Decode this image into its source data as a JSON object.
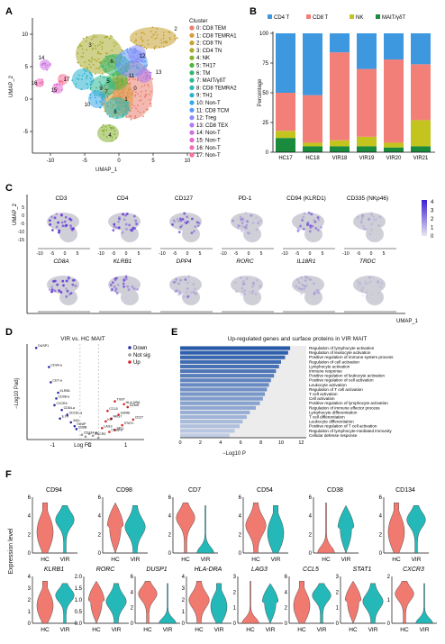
{
  "panels": [
    "A",
    "B",
    "C",
    "D",
    "E",
    "F"
  ],
  "panel_a": {
    "xlabel": "UMAP_1",
    "ylabel": "UMAP_2",
    "xticks": [
      "-10",
      "-5",
      "0",
      "5",
      "10"
    ],
    "yticks": [
      "10",
      "5",
      "0",
      "-5"
    ],
    "legend_title": "Cluster",
    "clusters": [
      {
        "label": "0: CD8 TEM",
        "color": "#e97f6f"
      },
      {
        "label": "1: CD8 TEMRA1",
        "color": "#d89b3d"
      },
      {
        "label": "2: CD8 TN",
        "color": "#c7a133"
      },
      {
        "label": "3: CD4 TN",
        "color": "#a9ab30"
      },
      {
        "label": "4: NK",
        "color": "#85b12f"
      },
      {
        "label": "5: TH17",
        "color": "#4fb63a"
      },
      {
        "label": "6: TM",
        "color": "#33b76c"
      },
      {
        "label": "7: MAIT/γδT",
        "color": "#2fb895"
      },
      {
        "label": "8: CD8 TEMRA2",
        "color": "#2db7b5"
      },
      {
        "label": "9: TH1",
        "color": "#2ab3cf"
      },
      {
        "label": "10: Non-T",
        "color": "#36a9e6"
      },
      {
        "label": "11: CD8 TCM",
        "color": "#5b9bf5"
      },
      {
        "label": "12: Treg",
        "color": "#8b8cf7"
      },
      {
        "label": "13: CD8 TEX",
        "color": "#b27cf2"
      },
      {
        "label": "14: Non-T",
        "color": "#cf70e3"
      },
      {
        "label": "15: Non-T",
        "color": "#e46ad0"
      },
      {
        "label": "16: Non-T",
        "color": "#ef6cb5"
      },
      {
        "label": "17: Non-T",
        "color": "#f37597"
      }
    ],
    "cluster_numbers": [
      "0",
      "1",
      "2",
      "3",
      "4",
      "5",
      "6",
      "7",
      "8",
      "9",
      "10",
      "11",
      "12",
      "13",
      "14",
      "15",
      "16",
      "17"
    ]
  },
  "chart_data": [
    {
      "type": "bar",
      "stacked": true,
      "panel": "B",
      "ylabel": "Percentage",
      "ylim": [
        0,
        100
      ],
      "yticks": [
        "0",
        "25",
        "50",
        "75",
        "100"
      ],
      "categories": [
        "HC17",
        "HC18",
        "VIR18",
        "VIR19",
        "VIR20",
        "VIR21"
      ],
      "legend": "top",
      "series": [
        {
          "name": "MAIT/γδT",
          "color": "#1a8a3c",
          "values": [
            12,
            5,
            5,
            5,
            4,
            5
          ]
        },
        {
          "name": "NK",
          "color": "#c4c41e",
          "values": [
            6,
            3,
            5,
            8,
            4,
            22
          ]
        },
        {
          "name": "CD8 T",
          "color": "#f37f79",
          "values": [
            32,
            40,
            74,
            57,
            70,
            47
          ]
        },
        {
          "name": "CD4 T",
          "color": "#3e98e0",
          "values": [
            50,
            52,
            16,
            30,
            22,
            26
          ]
        }
      ]
    },
    {
      "type": "scatter",
      "panel": "D",
      "title": "VIR vs. HC MAIT",
      "xlabel": "Log FC",
      "ylabel": "−Log10 Padj",
      "xticks": [
        "-1",
        "0",
        "1"
      ],
      "legend": [
        "Down",
        "Not sig",
        "Up"
      ],
      "legend_colors": [
        "#2a2fa8",
        "#999999",
        "#d62728"
      ],
      "labeled_genes": [
        "DUSP1",
        "CD94-a",
        "CD7-a",
        "KLRB1",
        "CD98-a",
        "CXCR4",
        "CD54-a",
        "CD161-a",
        "IL7R",
        "JUN",
        "TXNIP",
        "CD8B",
        "TIGIT",
        "HLA-DRA",
        "GZMH",
        "CCL5",
        "GZMB",
        "NKG7",
        "KIP",
        "STAT1",
        "LAG3",
        "SELL",
        "CD27",
        "CD38-a",
        "CD134-a",
        "CXCR3"
      ],
      "points": [
        {
          "x": -1.45,
          "y": 9.6,
          "g": "down"
        },
        {
          "x": -1.1,
          "y": 7.6,
          "g": "down"
        },
        {
          "x": -1.05,
          "y": 6.0,
          "g": "down"
        },
        {
          "x": -0.85,
          "y": 4.9,
          "g": "down"
        },
        {
          "x": -0.9,
          "y": 4.3,
          "g": "down"
        },
        {
          "x": -0.95,
          "y": 3.6,
          "g": "down"
        },
        {
          "x": -0.75,
          "y": 3.1,
          "g": "down"
        },
        {
          "x": -0.6,
          "y": 2.6,
          "g": "down"
        },
        {
          "x": -0.8,
          "y": 2.2,
          "g": "down"
        },
        {
          "x": -0.5,
          "y": 1.8,
          "g": "down"
        },
        {
          "x": -0.4,
          "y": 1.4,
          "g": "down"
        },
        {
          "x": -0.35,
          "y": 1.1,
          "g": "down"
        },
        {
          "x": 0.7,
          "y": 4.0,
          "g": "up"
        },
        {
          "x": 0.95,
          "y": 3.7,
          "g": "up"
        },
        {
          "x": 1.05,
          "y": 3.4,
          "g": "up"
        },
        {
          "x": 0.5,
          "y": 3.0,
          "g": "up"
        },
        {
          "x": 0.8,
          "y": 2.6,
          "g": "up"
        },
        {
          "x": 0.6,
          "y": 2.2,
          "g": "up"
        },
        {
          "x": 0.45,
          "y": 1.9,
          "g": "up"
        },
        {
          "x": 0.9,
          "y": 1.5,
          "g": "up"
        },
        {
          "x": 0.35,
          "y": 1.2,
          "g": "up"
        },
        {
          "x": 0.7,
          "y": 1.0,
          "g": "up"
        },
        {
          "x": 1.2,
          "y": 2.1,
          "g": "up"
        },
        {
          "x": 0.55,
          "y": 0.8,
          "g": "up"
        },
        {
          "x": -0.2,
          "y": 0.5,
          "g": "ns"
        },
        {
          "x": 0.1,
          "y": 0.4,
          "g": "ns"
        },
        {
          "x": 0.2,
          "y": 0.7,
          "g": "ns"
        },
        {
          "x": -0.1,
          "y": 0.3,
          "g": "ns"
        },
        {
          "x": 0.0,
          "y": 0.6,
          "g": "ns"
        },
        {
          "x": 0.25,
          "y": 0.2,
          "g": "ns"
        }
      ]
    },
    {
      "type": "bar",
      "orientation": "horizontal",
      "panel": "E",
      "title": "Up-regulated genes and surface proteins in VIR MAIT",
      "xlabel": "−Log10 P",
      "xticks": [
        "0",
        "2",
        "4",
        "6",
        "8",
        "10",
        "12"
      ],
      "xlim": [
        0,
        12.5
      ],
      "categories": [
        "Regulation of lymphocyte activation",
        "Regulation of leukocyte activation",
        "Positive regulation of immune system process",
        "Regulation of cell activation",
        "Lymphocyte activation",
        "Immune response",
        "Positive regulation of leukocyte activation",
        "Positive regulation of cell activation",
        "Leukocyte activation",
        "Regulation of T cell activation",
        "T cell activation",
        "Cell activation",
        "Positive regulation of lymphocyte activation",
        "Regulation of immune effector process",
        "Lymphocyte differentiation",
        "T cell differentiation",
        "Leukocyte differentiation",
        "Positive regulation of T cell activation",
        "Regulation of lymphocyte-mediated immunity",
        "Cellular defense response"
      ],
      "values": [
        10.9,
        10.7,
        10.4,
        10.0,
        9.8,
        9.5,
        9.3,
        9.0,
        8.8,
        8.6,
        8.4,
        8.2,
        7.9,
        7.5,
        6.9,
        6.6,
        6.2,
        5.9,
        5.4,
        4.9
      ]
    }
  ],
  "panel_c": {
    "xlabel": "UMAP_1",
    "ylabel": "UMAP_2",
    "xticks": [
      "-10",
      "-5",
      "0",
      "5"
    ],
    "yticks": [
      "5",
      "0",
      "-5",
      "-10",
      "-15"
    ],
    "row1": [
      "CD3",
      "CD4",
      "CD127",
      "PD-1",
      "CD94 (KLRD1)",
      "CD335 (NKp46)"
    ],
    "row2": [
      "CD8A",
      "KLRB1",
      "DPP4",
      "RORC",
      "IL18R1",
      "TRDC"
    ],
    "colorbar_ticks": [
      "4",
      "3",
      "2",
      "1",
      "0"
    ]
  },
  "panel_f": {
    "ylabel": "Expression level",
    "groups": [
      "HC",
      "VIR"
    ],
    "hc_color": "#f07a70",
    "vir_color": "#25b8b8",
    "row1": [
      {
        "name": "CD94",
        "ticks": [
          "6",
          "4",
          "2",
          "0"
        ]
      },
      {
        "name": "CD98",
        "ticks": [
          "6",
          "4",
          "2",
          "0"
        ]
      },
      {
        "name": "CD7",
        "ticks": [
          "6",
          "4",
          "2",
          "0"
        ]
      },
      {
        "name": "CD54",
        "ticks": [
          "6",
          "4",
          "2",
          "0"
        ]
      },
      {
        "name": "CD38",
        "ticks": [
          "6",
          "4",
          "2",
          "0"
        ]
      },
      {
        "name": "CD134",
        "ticks": [
          "6",
          "4",
          "2",
          "0"
        ]
      }
    ],
    "row2": [
      {
        "name": "KLRB1",
        "ticks": [
          "4",
          "3",
          "2",
          "1",
          "0"
        ]
      },
      {
        "name": "RORC",
        "ticks": [
          "2.0",
          "1.5",
          "1.0",
          "0.5",
          "0.0"
        ]
      },
      {
        "name": "DUSP1",
        "ticks": [
          "6",
          "4",
          "2",
          "0"
        ]
      },
      {
        "name": "HLA-DRA",
        "ticks": [
          "4",
          "3",
          "2",
          "1",
          "0"
        ]
      },
      {
        "name": "LAG3",
        "ticks": [
          "3",
          "2",
          "1",
          "0"
        ]
      },
      {
        "name": "CCL5",
        "ticks": [
          "6",
          "4",
          "2",
          "0"
        ]
      },
      {
        "name": "STAT1",
        "ticks": [
          "3",
          "2",
          "1",
          "0"
        ]
      },
      {
        "name": "CXCR3",
        "ticks": [
          "2",
          "1",
          "0"
        ]
      }
    ]
  }
}
